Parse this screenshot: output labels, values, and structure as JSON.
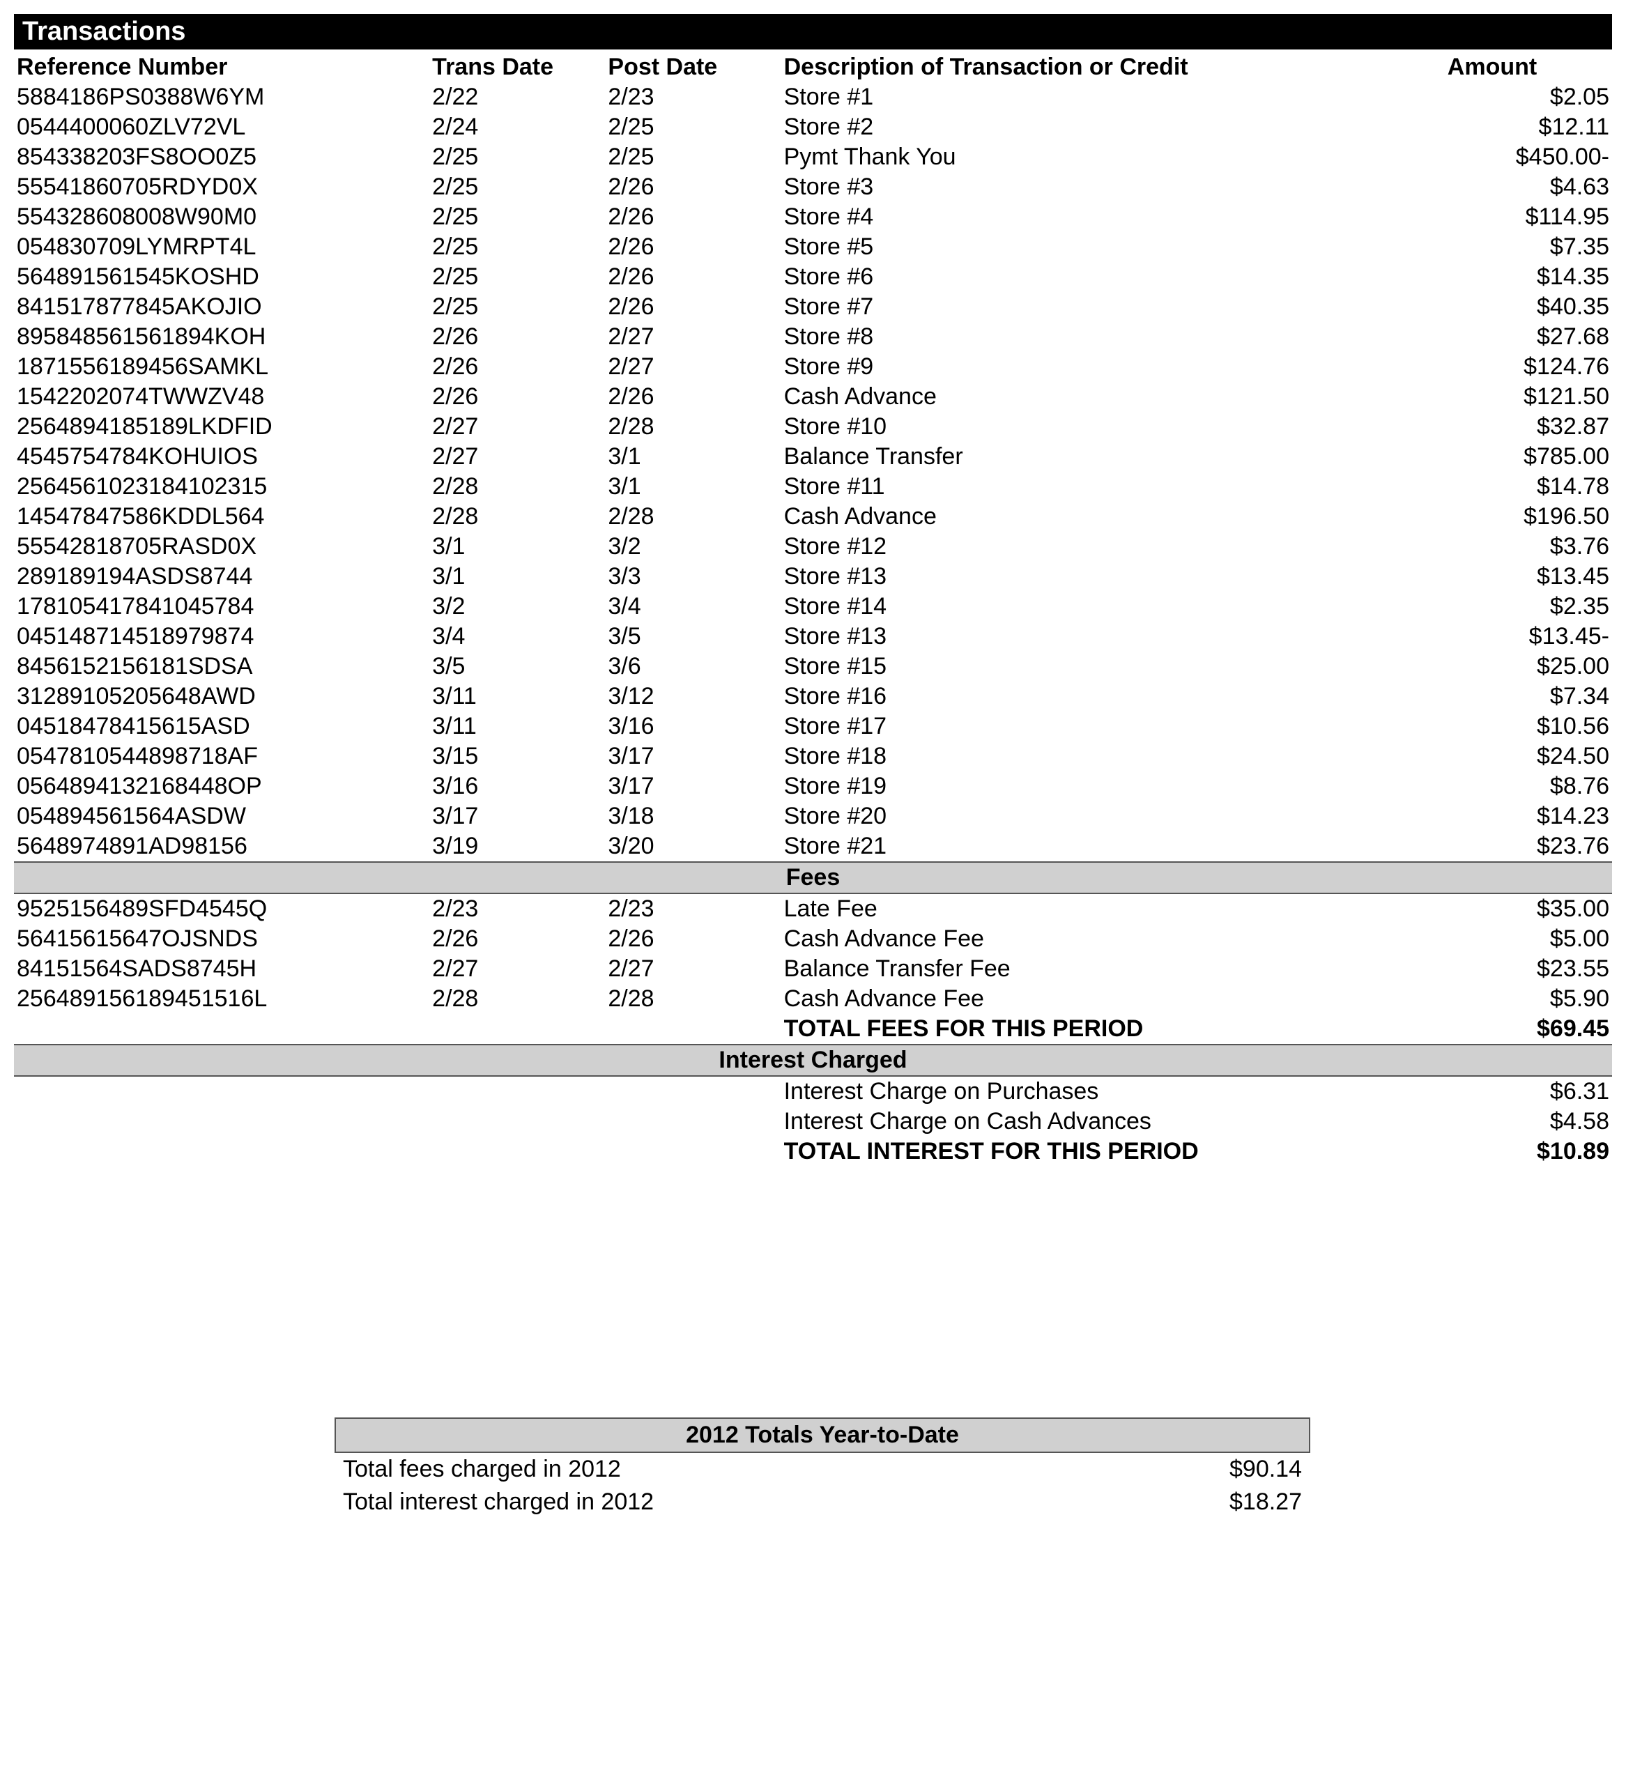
{
  "title": "Transactions",
  "columns": {
    "ref": "Reference Number",
    "trans": "Trans Date",
    "post": "Post Date",
    "desc": "Description of Transaction or Credit",
    "amount": "Amount"
  },
  "transactions": [
    {
      "ref": "5884186PS0388W6YM",
      "trans": "2/22",
      "post": "2/23",
      "desc": "Store #1",
      "amount": "$2.05"
    },
    {
      "ref": "0544400060ZLV72VL",
      "trans": "2/24",
      "post": "2/25",
      "desc": "Store #2",
      "amount": "$12.11"
    },
    {
      "ref": "854338203FS8OO0Z5",
      "trans": "2/25",
      "post": "2/25",
      "desc": "Pymt Thank You",
      "amount": "$450.00-"
    },
    {
      "ref": "55541860705RDYD0X",
      "trans": "2/25",
      "post": "2/26",
      "desc": "Store #3",
      "amount": "$4.63"
    },
    {
      "ref": "554328608008W90M0",
      "trans": "2/25",
      "post": "2/26",
      "desc": "Store #4",
      "amount": "$114.95"
    },
    {
      "ref": "054830709LYMRPT4L",
      "trans": "2/25",
      "post": "2/26",
      "desc": "Store #5",
      "amount": "$7.35"
    },
    {
      "ref": "564891561545KOSHD",
      "trans": "2/25",
      "post": "2/26",
      "desc": "Store #6",
      "amount": "$14.35"
    },
    {
      "ref": "841517877845AKOJIO",
      "trans": "2/25",
      "post": "2/26",
      "desc": "Store #7",
      "amount": "$40.35"
    },
    {
      "ref": "895848561561894KOH",
      "trans": "2/26",
      "post": "2/27",
      "desc": "Store #8",
      "amount": "$27.68"
    },
    {
      "ref": "1871556189456SAMKL",
      "trans": "2/26",
      "post": "2/27",
      "desc": "Store #9",
      "amount": "$124.76"
    },
    {
      "ref": "1542202074TWWZV48",
      "trans": "2/26",
      "post": "2/26",
      "desc": "Cash Advance",
      "amount": "$121.50"
    },
    {
      "ref": "2564894185189LKDFID",
      "trans": "2/27",
      "post": "2/28",
      "desc": "Store #10",
      "amount": "$32.87"
    },
    {
      "ref": "4545754784KOHUIOS",
      "trans": "2/27",
      "post": "3/1",
      "desc": "Balance Transfer",
      "amount": "$785.00"
    },
    {
      "ref": "2564561023184102315",
      "trans": "2/28",
      "post": "3/1",
      "desc": "Store #11",
      "amount": "$14.78"
    },
    {
      "ref": "14547847586KDDL564",
      "trans": "2/28",
      "post": "2/28",
      "desc": "Cash Advance",
      "amount": "$196.50"
    },
    {
      "ref": "55542818705RASD0X",
      "trans": "3/1",
      "post": "3/2",
      "desc": "Store #12",
      "amount": "$3.76"
    },
    {
      "ref": "289189194ASDS8744",
      "trans": "3/1",
      "post": "3/3",
      "desc": "Store #13",
      "amount": "$13.45"
    },
    {
      "ref": "178105417841045784",
      "trans": "3/2",
      "post": "3/4",
      "desc": "Store #14",
      "amount": "$2.35"
    },
    {
      "ref": "045148714518979874",
      "trans": "3/4",
      "post": "3/5",
      "desc": "Store #13",
      "amount": "$13.45-"
    },
    {
      "ref": "8456152156181SDSA",
      "trans": "3/5",
      "post": "3/6",
      "desc": "Store #15",
      "amount": "$25.00"
    },
    {
      "ref": "31289105205648AWD",
      "trans": "3/11",
      "post": "3/12",
      "desc": "Store #16",
      "amount": "$7.34"
    },
    {
      "ref": "04518478415615ASD",
      "trans": "3/11",
      "post": "3/16",
      "desc": "Store #17",
      "amount": "$10.56"
    },
    {
      "ref": "0547810544898718AF",
      "trans": "3/15",
      "post": "3/17",
      "desc": "Store #18",
      "amount": "$24.50"
    },
    {
      "ref": "0564894132168448OP",
      "trans": "3/16",
      "post": "3/17",
      "desc": "Store #19",
      "amount": "$8.76"
    },
    {
      "ref": "054894561564ASDW",
      "trans": "3/17",
      "post": "3/18",
      "desc": "Store #20",
      "amount": "$14.23"
    },
    {
      "ref": "5648974891AD98156",
      "trans": "3/19",
      "post": "3/20",
      "desc": "Store #21",
      "amount": "$23.76"
    }
  ],
  "feesHeader": "Fees",
  "fees": [
    {
      "ref": "9525156489SFD4545Q",
      "trans": "2/23",
      "post": "2/23",
      "desc": "Late Fee",
      "amount": "$35.00"
    },
    {
      "ref": "56415615647OJSNDS",
      "trans": "2/26",
      "post": "2/26",
      "desc": "Cash Advance Fee",
      "amount": "$5.00"
    },
    {
      "ref": "84151564SADS8745H",
      "trans": "2/27",
      "post": "2/27",
      "desc": "Balance Transfer Fee",
      "amount": "$23.55"
    },
    {
      "ref": "256489156189451516L",
      "trans": "2/28",
      "post": "2/28",
      "desc": "Cash Advance Fee",
      "amount": "$5.90"
    }
  ],
  "feesTotal": {
    "label": "TOTAL FEES FOR THIS PERIOD",
    "amount": "$69.45"
  },
  "interestHeader": "Interest Charged",
  "interest": [
    {
      "desc": "Interest Charge on Purchases",
      "amount": "$6.31"
    },
    {
      "desc": "Interest Charge on Cash Advances",
      "amount": "$4.58"
    }
  ],
  "interestTotal": {
    "label": "TOTAL INTEREST FOR THIS PERIOD",
    "amount": "$10.89"
  },
  "ytd": {
    "header": "2012 Totals Year-to-Date",
    "rows": [
      {
        "label": "Total fees charged in 2012",
        "amount": "$90.14"
      },
      {
        "label": "Total interest charged in 2012",
        "amount": "$18.27"
      }
    ]
  }
}
